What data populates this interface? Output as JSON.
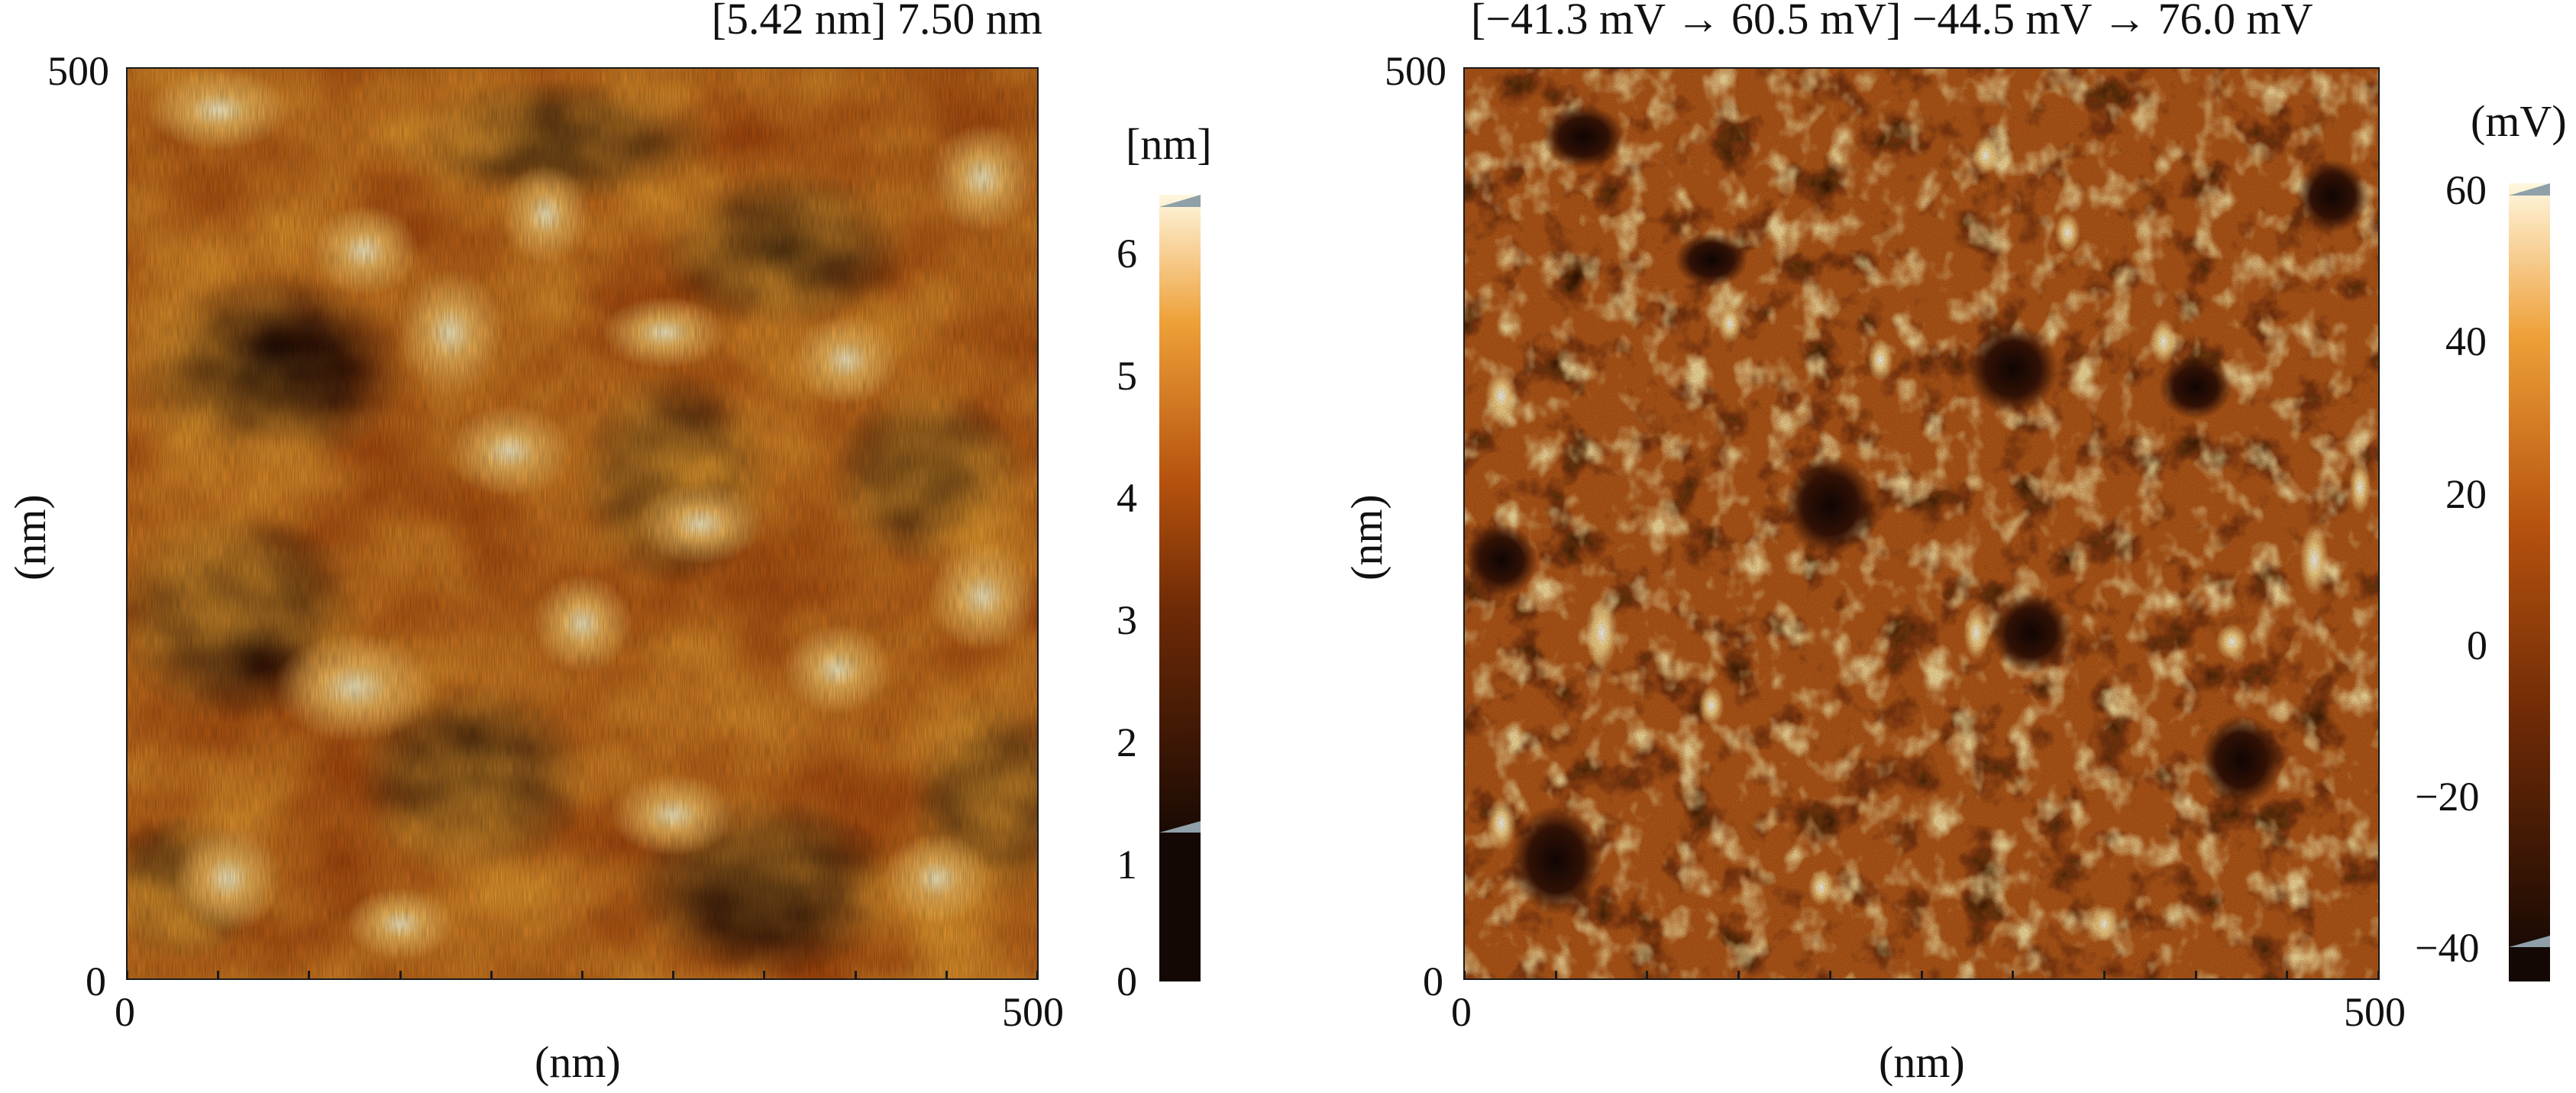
{
  "panels": [
    {
      "range_title": "[5.42 nm] 7.50 nm",
      "x_label": "(nm)",
      "y_label": "(nm)",
      "x_ticks": [
        "0",
        "500"
      ],
      "y_ticks": [
        "0",
        "500"
      ],
      "colorbar": {
        "unit": "[nm]",
        "ticks": [
          "0",
          "1",
          "2",
          "3",
          "4",
          "5",
          "6"
        ],
        "min": 0,
        "max": 6.4,
        "clip_low": 1.1
      }
    },
    {
      "range_title": "[−41.3 mV → 60.5 mV] −44.5 mV → 76.0 mV",
      "x_label": "(nm)",
      "y_label": "(nm)",
      "x_ticks": [
        "0",
        "500"
      ],
      "y_ticks": [
        "0",
        "500"
      ],
      "colorbar": {
        "unit": "(mV)",
        "ticks": [
          "60",
          "40",
          "20",
          "0",
          "−20",
          "−40"
        ],
        "min": -44.5,
        "max": 60.5,
        "clip_low": -41.3
      }
    }
  ],
  "colors": {
    "dark": "#1a0a04",
    "mid": "#b5520e",
    "orange": "#e8921c",
    "light": "#fff1c8"
  }
}
